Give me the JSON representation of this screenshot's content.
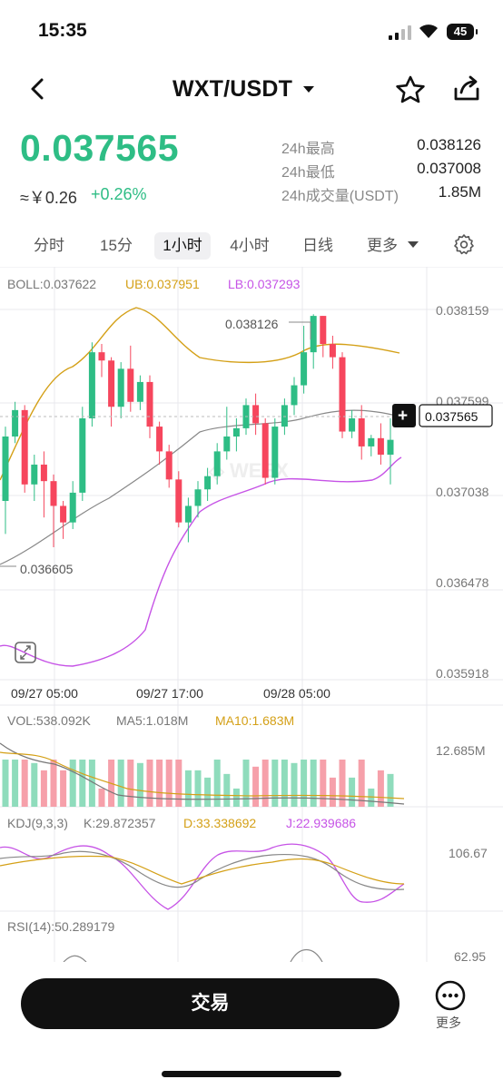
{
  "status": {
    "time": "15:35",
    "battery": "45"
  },
  "header": {
    "pair": "WXT/USDT"
  },
  "price": {
    "last": "0.037565",
    "cny": "≈￥0.26",
    "change": "+0.26%",
    "high_label": "24h最高",
    "high_value": "0.038126",
    "low_label": "24h最低",
    "low_value": "0.037008",
    "vol_label": "24h成交量(USDT)",
    "vol_value": "1.85M"
  },
  "tabs": [
    "分时",
    "15分",
    "1小时",
    "4小时",
    "日线",
    "更多"
  ],
  "active_tab": "1小时",
  "colors": {
    "up": "#2ebd85",
    "down": "#f6465d",
    "ub": "#d4a017",
    "lb": "#c653e6",
    "mid": "#888888"
  },
  "chart": {
    "boll": {
      "label": "BOLL:0.037622",
      "ub": "UB:0.037951",
      "lb": "LB:0.037293"
    },
    "y_ticks": [
      "0.038159",
      "0.037599",
      "0.037038",
      "0.036478",
      "0.035918"
    ],
    "x_ticks": [
      "09/27 05:00",
      "09/27 17:00",
      "09/28 05:00"
    ],
    "high_mark": "0.038126",
    "low_mark": "0.036605",
    "last_price_tag": "0.037565",
    "crosshair_plus": "+"
  },
  "vol": {
    "label": "VOL:538.092K",
    "ma5": "MA5:1.018M",
    "ma10": "MA10:1.683M",
    "max_tick": "12.685M"
  },
  "kdj": {
    "label": "KDJ(9,3,3)",
    "k": "K:29.872357",
    "d": "D:33.338692",
    "j": "J:22.939686",
    "tick": "106.67"
  },
  "rsi": {
    "label": "RSI(14):50.289179",
    "tick": "62.95"
  },
  "bottom": {
    "trade": "交易",
    "more": "更多"
  },
  "chart_data": {
    "type": "candlestick",
    "interval": "1h",
    "price_range": [
      0.035918,
      0.038159
    ],
    "candles": [
      [
        0.037,
        0.03739,
        0.0368,
        0.03745
      ],
      [
        0.03739,
        0.03755,
        0.03735,
        0.0376
      ],
      [
        0.03755,
        0.0371,
        0.03705,
        0.03758
      ],
      [
        0.0371,
        0.03722,
        0.037,
        0.03728
      ],
      [
        0.03722,
        0.03712,
        0.0369,
        0.0373
      ],
      [
        0.03712,
        0.03697,
        0.03672,
        0.03716
      ],
      [
        0.03697,
        0.03687,
        0.03677,
        0.037
      ],
      [
        0.03687,
        0.03705,
        0.03683,
        0.03712
      ],
      [
        0.03705,
        0.0375,
        0.037,
        0.03757
      ],
      [
        0.0375,
        0.0379,
        0.03745,
        0.03796
      ],
      [
        0.0379,
        0.03785,
        0.03775,
        0.03795
      ],
      [
        0.03785,
        0.03757,
        0.03745,
        0.03787
      ],
      [
        0.03757,
        0.0378,
        0.0375,
        0.03784
      ],
      [
        0.0378,
        0.0376,
        0.03754,
        0.03794
      ],
      [
        0.0376,
        0.03772,
        0.03755,
        0.03776
      ],
      [
        0.03772,
        0.03745,
        0.03738,
        0.03776
      ],
      [
        0.03745,
        0.0373,
        0.03722,
        0.03748
      ],
      [
        0.0373,
        0.03713,
        0.03708,
        0.03734
      ],
      [
        0.03713,
        0.03687,
        0.03684,
        0.03718
      ],
      [
        0.03687,
        0.03697,
        0.03675,
        0.03702
      ],
      [
        0.03697,
        0.03707,
        0.0369,
        0.03712
      ],
      [
        0.03707,
        0.03715,
        0.037,
        0.0372
      ],
      [
        0.03715,
        0.0373,
        0.0371,
        0.03735
      ],
      [
        0.0373,
        0.03739,
        0.03725,
        0.03757
      ],
      [
        0.03739,
        0.03744,
        0.0373,
        0.0375
      ],
      [
        0.03744,
        0.03758,
        0.0374,
        0.03762
      ],
      [
        0.03758,
        0.03747,
        0.0374,
        0.03765
      ],
      [
        0.03747,
        0.03714,
        0.0371,
        0.0375
      ],
      [
        0.03714,
        0.03745,
        0.0371,
        0.0375
      ],
      [
        0.03745,
        0.03758,
        0.0374,
        0.03762
      ],
      [
        0.03758,
        0.0377,
        0.03752,
        0.03775
      ],
      [
        0.0377,
        0.0379,
        0.03765,
        0.03806
      ],
      [
        0.0379,
        0.03812,
        0.0378,
        0.03813
      ],
      [
        0.03812,
        0.03795,
        0.03787,
        0.03812
      ],
      [
        0.03795,
        0.03787,
        0.0378,
        0.038
      ],
      [
        0.03787,
        0.03742,
        0.03738,
        0.0379
      ],
      [
        0.03742,
        0.0375,
        0.03738,
        0.03755
      ],
      [
        0.0375,
        0.03733,
        0.03725,
        0.03758
      ],
      [
        0.03733,
        0.03738,
        0.03727,
        0.0374
      ],
      [
        0.03738,
        0.03728,
        0.03722,
        0.03747
      ],
      [
        0.03728,
        0.03737,
        0.0371,
        0.0375
      ]
    ],
    "volume_max": 12.685
  }
}
